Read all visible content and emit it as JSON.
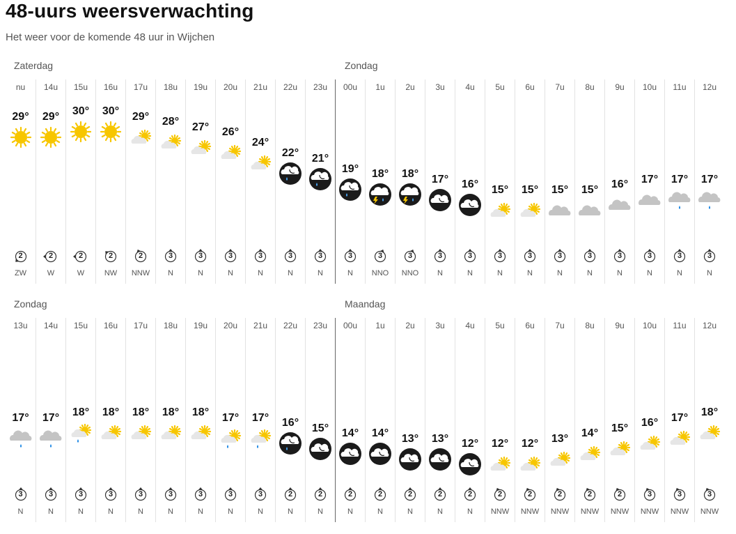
{
  "title": "48-uurs weersverwachting",
  "subtitle": "Het weer voor de komende 48 uur in Wijchen",
  "blocks": [
    {
      "days": [
        "Zaterdag",
        "Zondag"
      ],
      "hours": [
        {
          "hour": "nu",
          "temp": "29°",
          "icon": "sun-icon",
          "wind": "2",
          "dir": "ZW"
        },
        {
          "hour": "14u",
          "temp": "29°",
          "icon": "sun-icon",
          "wind": "2",
          "dir": "W"
        },
        {
          "hour": "15u",
          "temp": "30°",
          "icon": "sun-icon",
          "wind": "2",
          "dir": "W"
        },
        {
          "hour": "16u",
          "temp": "30°",
          "icon": "sun-icon",
          "wind": "2",
          "dir": "NW"
        },
        {
          "hour": "17u",
          "temp": "29°",
          "icon": "partly-cloudy-icon",
          "wind": "2",
          "dir": "NNW"
        },
        {
          "hour": "18u",
          "temp": "28°",
          "icon": "partly-cloudy-icon",
          "wind": "3",
          "dir": "N"
        },
        {
          "hour": "19u",
          "temp": "27°",
          "icon": "partly-cloudy-icon",
          "wind": "3",
          "dir": "N"
        },
        {
          "hour": "20u",
          "temp": "26°",
          "icon": "partly-cloudy-icon",
          "wind": "3",
          "dir": "N"
        },
        {
          "hour": "21u",
          "temp": "24°",
          "icon": "partly-cloudy-icon",
          "wind": "3",
          "dir": "N"
        },
        {
          "hour": "22u",
          "temp": "22°",
          "icon": "night-rain-icon",
          "wind": "3",
          "dir": "N"
        },
        {
          "hour": "23u",
          "temp": "21°",
          "icon": "night-rain-icon",
          "wind": "3",
          "dir": "N"
        },
        {
          "hour": "00u",
          "temp": "19°",
          "icon": "night-rain-icon",
          "wind": "3",
          "dir": "N"
        },
        {
          "hour": "1u",
          "temp": "18°",
          "icon": "night-thunder-icon",
          "wind": "3",
          "dir": "NNO"
        },
        {
          "hour": "2u",
          "temp": "18°",
          "icon": "night-thunder-icon",
          "wind": "3",
          "dir": "NNO"
        },
        {
          "hour": "3u",
          "temp": "17°",
          "icon": "night-cloudy-icon",
          "wind": "3",
          "dir": "N"
        },
        {
          "hour": "4u",
          "temp": "16°",
          "icon": "night-cloudy-icon",
          "wind": "3",
          "dir": "N"
        },
        {
          "hour": "5u",
          "temp": "15°",
          "icon": "partly-cloudy-icon",
          "wind": "3",
          "dir": "N"
        },
        {
          "hour": "6u",
          "temp": "15°",
          "icon": "partly-cloudy-icon",
          "wind": "3",
          "dir": "N"
        },
        {
          "hour": "7u",
          "temp": "15°",
          "icon": "cloud-icon",
          "wind": "3",
          "dir": "N"
        },
        {
          "hour": "8u",
          "temp": "15°",
          "icon": "cloud-icon",
          "wind": "3",
          "dir": "N"
        },
        {
          "hour": "9u",
          "temp": "16°",
          "icon": "cloud-icon",
          "wind": "3",
          "dir": "N"
        },
        {
          "hour": "10u",
          "temp": "17°",
          "icon": "cloud-icon",
          "wind": "3",
          "dir": "N"
        },
        {
          "hour": "11u",
          "temp": "17°",
          "icon": "cloud-rain-icon",
          "wind": "3",
          "dir": "N"
        },
        {
          "hour": "12u",
          "temp": "17°",
          "icon": "cloud-rain-icon",
          "wind": "3",
          "dir": "N"
        }
      ]
    },
    {
      "days": [
        "Zondag",
        "Maandag"
      ],
      "hours": [
        {
          "hour": "13u",
          "temp": "17°",
          "icon": "cloud-rain-icon",
          "wind": "3",
          "dir": "N"
        },
        {
          "hour": "14u",
          "temp": "17°",
          "icon": "cloud-rain-icon",
          "wind": "3",
          "dir": "N"
        },
        {
          "hour": "15u",
          "temp": "18°",
          "icon": "partly-cloudy-rain-icon",
          "wind": "3",
          "dir": "N"
        },
        {
          "hour": "16u",
          "temp": "18°",
          "icon": "partly-cloudy-icon",
          "wind": "3",
          "dir": "N"
        },
        {
          "hour": "17u",
          "temp": "18°",
          "icon": "partly-cloudy-icon",
          "wind": "3",
          "dir": "N"
        },
        {
          "hour": "18u",
          "temp": "18°",
          "icon": "partly-cloudy-icon",
          "wind": "3",
          "dir": "N"
        },
        {
          "hour": "19u",
          "temp": "18°",
          "icon": "partly-cloudy-icon",
          "wind": "3",
          "dir": "N"
        },
        {
          "hour": "20u",
          "temp": "17°",
          "icon": "partly-cloudy-rain-icon",
          "wind": "3",
          "dir": "N"
        },
        {
          "hour": "21u",
          "temp": "17°",
          "icon": "partly-cloudy-rain-icon",
          "wind": "3",
          "dir": "N"
        },
        {
          "hour": "22u",
          "temp": "16°",
          "icon": "night-rain-icon",
          "wind": "2",
          "dir": "N"
        },
        {
          "hour": "23u",
          "temp": "15°",
          "icon": "night-cloudy-icon",
          "wind": "2",
          "dir": "N"
        },
        {
          "hour": "00u",
          "temp": "14°",
          "icon": "night-cloudy-icon",
          "wind": "2",
          "dir": "N"
        },
        {
          "hour": "1u",
          "temp": "14°",
          "icon": "night-cloudy-icon",
          "wind": "2",
          "dir": "N"
        },
        {
          "hour": "2u",
          "temp": "13°",
          "icon": "night-cloudy-icon",
          "wind": "2",
          "dir": "N"
        },
        {
          "hour": "3u",
          "temp": "13°",
          "icon": "night-cloudy-icon",
          "wind": "2",
          "dir": "N"
        },
        {
          "hour": "4u",
          "temp": "12°",
          "icon": "night-cloudy-icon",
          "wind": "2",
          "dir": "N"
        },
        {
          "hour": "5u",
          "temp": "12°",
          "icon": "partly-cloudy-icon",
          "wind": "2",
          "dir": "NNW"
        },
        {
          "hour": "6u",
          "temp": "12°",
          "icon": "partly-cloudy-icon",
          "wind": "2",
          "dir": "NNW"
        },
        {
          "hour": "7u",
          "temp": "13°",
          "icon": "partly-cloudy-icon",
          "wind": "2",
          "dir": "NNW"
        },
        {
          "hour": "8u",
          "temp": "14°",
          "icon": "partly-cloudy-icon",
          "wind": "2",
          "dir": "NNW"
        },
        {
          "hour": "9u",
          "temp": "15°",
          "icon": "partly-cloudy-icon",
          "wind": "2",
          "dir": "NNW"
        },
        {
          "hour": "10u",
          "temp": "16°",
          "icon": "partly-cloudy-icon",
          "wind": "3",
          "dir": "NNW"
        },
        {
          "hour": "11u",
          "temp": "17°",
          "icon": "partly-cloudy-icon",
          "wind": "3",
          "dir": "NNW"
        },
        {
          "hour": "12u",
          "temp": "18°",
          "icon": "partly-cloudy-icon",
          "wind": "3",
          "dir": "NNW"
        }
      ]
    }
  ],
  "colors": {
    "sun": "#f7c600",
    "cloud": "#c4c4c4",
    "night": "#1b1b1b",
    "rain": "#1e88e5"
  }
}
